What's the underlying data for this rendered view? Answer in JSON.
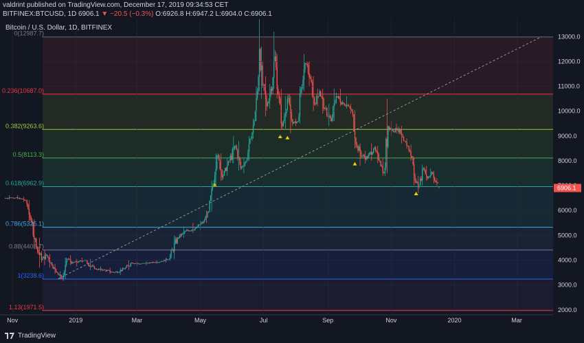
{
  "header": {
    "published_line": "valdrint published on TradingView.com, December 17, 2019 09:34:53 CET",
    "symbol": "BITFINEX:BTCUSD, 1D",
    "price": "6906.1",
    "change": "▼ −20.5 (−0.3%)",
    "ohlc": "O:6926.8 H:6947.2 L:6904.0 C:6906.1"
  },
  "chart_title": "Bitcoin / U.S. Dollar, 1D, BITFINEX",
  "footer": {
    "brand": "TradingView"
  },
  "colors": {
    "background": "#131722",
    "up": "#26a69a",
    "down": "#ef5350",
    "price_tag": "#ef5350",
    "triangle": "#f5d300"
  },
  "chart_data": {
    "type": "candlestick",
    "title": "Bitcoin / U.S. Dollar, 1D, BITFINEX",
    "ylim": [
      1800,
      13700
    ],
    "y_ticks": [
      "13000.0",
      "12000.0",
      "11000.0",
      "10000.0",
      "9000.0",
      "8000.0",
      "7000.0",
      "6000.0",
      "5000.0",
      "4000.0",
      "3000.0",
      "2000.0"
    ],
    "x_ticks": [
      {
        "label": "Nov",
        "date": "2018-11-01"
      },
      {
        "label": "2019",
        "date": "2019-01-01"
      },
      {
        "label": "Mar",
        "date": "2019-03-01"
      },
      {
        "label": "May",
        "date": "2019-05-01"
      },
      {
        "label": "Jul",
        "date": "2019-07-01"
      },
      {
        "label": "Sep",
        "date": "2019-09-01"
      },
      {
        "label": "Nov",
        "date": "2019-11-01"
      },
      {
        "label": "2020",
        "date": "2020-01-01"
      },
      {
        "label": "Mar",
        "date": "2020-03-01"
      }
    ],
    "last_price": "6906.1",
    "fib_levels": [
      {
        "label": "0(12987.7)",
        "value": 12987.7,
        "color": "#787b86"
      },
      {
        "label": "0.236(10687.0)",
        "value": 10687.0,
        "color": "#f23645"
      },
      {
        "label": "0.382(9263.6)",
        "value": 9263.6,
        "color": "#a7c540"
      },
      {
        "label": "0.5(8113.3)",
        "value": 8113.3,
        "color": "#4caf50"
      },
      {
        "label": "0.618(6962.9)",
        "value": 6962.9,
        "color": "#26a69a"
      },
      {
        "label": "0.786(5325.1)",
        "value": 5325.1,
        "color": "#3fa9dc"
      },
      {
        "label": "0.88(4408.7)",
        "value": 4408.7,
        "color": "#787b86"
      },
      {
        "label": "1(3238.6)",
        "value": 3238.6,
        "color": "#2962ff"
      },
      {
        "label": "1.13(1971.5)",
        "value": 1971.5,
        "color": "#f23645"
      }
    ],
    "trendline": {
      "start": {
        "date": "2018-12-15",
        "value": 3250
      },
      "end": {
        "date": "2020-03-25",
        "value": 13000
      }
    },
    "markers": [
      {
        "date": "2019-05-15",
        "value": 7050
      },
      {
        "date": "2019-07-17",
        "value": 9000
      },
      {
        "date": "2019-07-24",
        "value": 8950
      },
      {
        "date": "2019-09-27",
        "value": 7900
      },
      {
        "date": "2019-11-25",
        "value": 6700
      }
    ],
    "series": [
      {
        "date": "2018-10-25",
        "open": 6500,
        "high": 6620,
        "low": 6450,
        "close": 6520
      },
      {
        "date": "2018-11-02",
        "open": 6520,
        "high": 6620,
        "low": 6450,
        "close": 6480
      },
      {
        "date": "2018-11-10",
        "open": 6480,
        "high": 6560,
        "low": 6350,
        "close": 6400
      },
      {
        "date": "2018-11-15",
        "open": 6400,
        "high": 6420,
        "low": 5550,
        "close": 5600
      },
      {
        "date": "2018-11-20",
        "open": 5600,
        "high": 5650,
        "low": 4450,
        "close": 4550
      },
      {
        "date": "2018-11-25",
        "open": 4550,
        "high": 4900,
        "low": 3700,
        "close": 4000
      },
      {
        "date": "2018-11-30",
        "open": 4000,
        "high": 4400,
        "low": 3800,
        "close": 4200
      },
      {
        "date": "2018-12-05",
        "open": 4200,
        "high": 4250,
        "low": 3700,
        "close": 3800
      },
      {
        "date": "2018-12-10",
        "open": 3800,
        "high": 3850,
        "low": 3450,
        "close": 3500
      },
      {
        "date": "2018-12-15",
        "open": 3500,
        "high": 3550,
        "low": 3220,
        "close": 3250
      },
      {
        "date": "2018-12-20",
        "open": 3250,
        "high": 4100,
        "low": 3250,
        "close": 4050
      },
      {
        "date": "2018-12-25",
        "open": 4050,
        "high": 4200,
        "low": 3800,
        "close": 3900
      },
      {
        "date": "2018-12-30",
        "open": 3900,
        "high": 4050,
        "low": 3750,
        "close": 3950
      },
      {
        "date": "2019-01-05",
        "open": 3950,
        "high": 4100,
        "low": 3900,
        "close": 4000
      },
      {
        "date": "2019-01-10",
        "open": 4000,
        "high": 4050,
        "low": 3600,
        "close": 3650
      },
      {
        "date": "2019-01-20",
        "open": 3650,
        "high": 3750,
        "low": 3550,
        "close": 3600
      },
      {
        "date": "2019-01-30",
        "open": 3600,
        "high": 3700,
        "low": 3450,
        "close": 3500
      },
      {
        "date": "2019-02-08",
        "open": 3500,
        "high": 3700,
        "low": 3400,
        "close": 3650
      },
      {
        "date": "2019-02-18",
        "open": 3650,
        "high": 4000,
        "low": 3600,
        "close": 3900
      },
      {
        "date": "2019-02-25",
        "open": 3900,
        "high": 3950,
        "low": 3750,
        "close": 3850
      },
      {
        "date": "2019-03-05",
        "open": 3850,
        "high": 3950,
        "low": 3800,
        "close": 3900
      },
      {
        "date": "2019-03-15",
        "open": 3900,
        "high": 4000,
        "low": 3850,
        "close": 3950
      },
      {
        "date": "2019-03-25",
        "open": 3950,
        "high": 4100,
        "low": 3900,
        "close": 4050
      },
      {
        "date": "2019-04-02",
        "open": 4050,
        "high": 5000,
        "low": 4050,
        "close": 4900
      },
      {
        "date": "2019-04-10",
        "open": 4900,
        "high": 5350,
        "low": 4900,
        "close": 5200
      },
      {
        "date": "2019-04-20",
        "open": 5200,
        "high": 5500,
        "low": 5100,
        "close": 5300
      },
      {
        "date": "2019-04-28",
        "open": 5300,
        "high": 5600,
        "low": 5200,
        "close": 5550
      },
      {
        "date": "2019-05-05",
        "open": 5550,
        "high": 6000,
        "low": 5500,
        "close": 5950
      },
      {
        "date": "2019-05-10",
        "open": 5950,
        "high": 7200,
        "low": 5950,
        "close": 7000
      },
      {
        "date": "2019-05-14",
        "open": 7000,
        "high": 8300,
        "low": 7000,
        "close": 8200
      },
      {
        "date": "2019-05-18",
        "open": 8200,
        "high": 8300,
        "low": 7200,
        "close": 7400
      },
      {
        "date": "2019-05-24",
        "open": 7400,
        "high": 8100,
        "low": 7400,
        "close": 8000
      },
      {
        "date": "2019-05-30",
        "open": 8000,
        "high": 9000,
        "low": 7900,
        "close": 8600
      },
      {
        "date": "2019-06-05",
        "open": 8600,
        "high": 8800,
        "low": 7600,
        "close": 7700
      },
      {
        "date": "2019-06-10",
        "open": 7700,
        "high": 8100,
        "low": 7500,
        "close": 8000
      },
      {
        "date": "2019-06-15",
        "open": 8000,
        "high": 9000,
        "low": 8000,
        "close": 8900
      },
      {
        "date": "2019-06-20",
        "open": 8900,
        "high": 9700,
        "low": 8900,
        "close": 9600
      },
      {
        "date": "2019-06-23",
        "open": 9600,
        "high": 11000,
        "low": 9600,
        "close": 10800
      },
      {
        "date": "2019-06-26",
        "open": 10800,
        "high": 13700,
        "low": 10800,
        "close": 12500
      },
      {
        "date": "2019-06-28",
        "open": 12500,
        "high": 12600,
        "low": 10500,
        "close": 11000
      },
      {
        "date": "2019-07-01",
        "open": 11000,
        "high": 11400,
        "low": 9800,
        "close": 10200
      },
      {
        "date": "2019-07-05",
        "open": 10200,
        "high": 11100,
        "low": 10100,
        "close": 10900
      },
      {
        "date": "2019-07-09",
        "open": 10900,
        "high": 13200,
        "low": 10900,
        "close": 12200
      },
      {
        "date": "2019-07-13",
        "open": 12200,
        "high": 12300,
        "low": 10500,
        "close": 10700
      },
      {
        "date": "2019-07-16",
        "open": 10700,
        "high": 10900,
        "low": 9300,
        "close": 9400
      },
      {
        "date": "2019-07-20",
        "open": 9400,
        "high": 10600,
        "low": 9300,
        "close": 10500
      },
      {
        "date": "2019-07-25",
        "open": 10500,
        "high": 10600,
        "low": 9100,
        "close": 9500
      },
      {
        "date": "2019-07-30",
        "open": 9500,
        "high": 9700,
        "low": 9400,
        "close": 9600
      },
      {
        "date": "2019-08-04",
        "open": 9600,
        "high": 11000,
        "low": 9500,
        "close": 10900
      },
      {
        "date": "2019-08-07",
        "open": 10900,
        "high": 12300,
        "low": 10800,
        "close": 11900
      },
      {
        "date": "2019-08-12",
        "open": 11900,
        "high": 12000,
        "low": 11000,
        "close": 11300
      },
      {
        "date": "2019-08-16",
        "open": 11300,
        "high": 11400,
        "low": 10000,
        "close": 10300
      },
      {
        "date": "2019-08-20",
        "open": 10300,
        "high": 10900,
        "low": 10200,
        "close": 10800
      },
      {
        "date": "2019-08-25",
        "open": 10800,
        "high": 10900,
        "low": 9900,
        "close": 10100
      },
      {
        "date": "2019-08-30",
        "open": 10100,
        "high": 10300,
        "low": 9400,
        "close": 9600
      },
      {
        "date": "2019-09-05",
        "open": 9600,
        "high": 10900,
        "low": 9600,
        "close": 10600
      },
      {
        "date": "2019-09-10",
        "open": 10600,
        "high": 10900,
        "low": 10200,
        "close": 10300
      },
      {
        "date": "2019-09-17",
        "open": 10300,
        "high": 10600,
        "low": 10100,
        "close": 10200
      },
      {
        "date": "2019-09-22",
        "open": 10200,
        "high": 10300,
        "low": 9900,
        "close": 10000
      },
      {
        "date": "2019-09-25",
        "open": 10000,
        "high": 10050,
        "low": 8500,
        "close": 8600
      },
      {
        "date": "2019-09-30",
        "open": 8600,
        "high": 8700,
        "low": 7800,
        "close": 8200
      },
      {
        "date": "2019-10-05",
        "open": 8200,
        "high": 8400,
        "low": 7900,
        "close": 8100
      },
      {
        "date": "2019-10-10",
        "open": 8100,
        "high": 8700,
        "low": 8000,
        "close": 8500
      },
      {
        "date": "2019-10-16",
        "open": 8500,
        "high": 8600,
        "low": 7900,
        "close": 8000
      },
      {
        "date": "2019-10-22",
        "open": 8000,
        "high": 8100,
        "low": 7400,
        "close": 7500
      },
      {
        "date": "2019-10-26",
        "open": 7500,
        "high": 10500,
        "low": 7500,
        "close": 9400
      },
      {
        "date": "2019-10-30",
        "open": 9400,
        "high": 9600,
        "low": 9000,
        "close": 9200
      },
      {
        "date": "2019-11-04",
        "open": 9200,
        "high": 9500,
        "low": 9100,
        "close": 9300
      },
      {
        "date": "2019-11-08",
        "open": 9300,
        "high": 9400,
        "low": 8700,
        "close": 8800
      },
      {
        "date": "2019-11-14",
        "open": 8800,
        "high": 8900,
        "low": 8500,
        "close": 8600
      },
      {
        "date": "2019-11-18",
        "open": 8600,
        "high": 8650,
        "low": 8000,
        "close": 8100
      },
      {
        "date": "2019-11-22",
        "open": 8100,
        "high": 8150,
        "low": 7000,
        "close": 7200
      },
      {
        "date": "2019-11-25",
        "open": 7200,
        "high": 7400,
        "low": 6700,
        "close": 7000
      },
      {
        "date": "2019-11-29",
        "open": 7000,
        "high": 7850,
        "low": 7000,
        "close": 7700
      },
      {
        "date": "2019-12-03",
        "open": 7700,
        "high": 7800,
        "low": 7200,
        "close": 7300
      },
      {
        "date": "2019-12-07",
        "open": 7300,
        "high": 7700,
        "low": 7300,
        "close": 7550
      },
      {
        "date": "2019-12-11",
        "open": 7550,
        "high": 7600,
        "low": 7100,
        "close": 7200
      },
      {
        "date": "2019-12-14",
        "open": 7200,
        "high": 7300,
        "low": 7000,
        "close": 7100
      },
      {
        "date": "2019-12-17",
        "open": 6926.8,
        "high": 6947.2,
        "low": 6904.0,
        "close": 6906.1
      }
    ]
  }
}
